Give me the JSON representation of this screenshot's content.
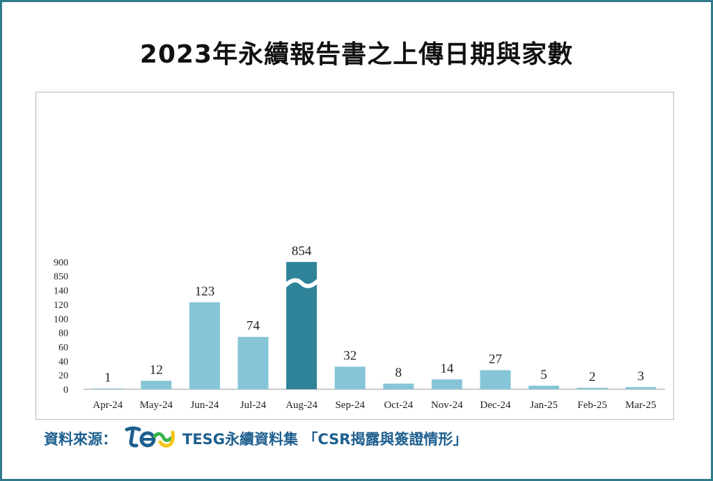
{
  "title": "2023年永續報告書之上傳日期與家數",
  "footer": {
    "source_label": "資料來源：",
    "logo_icon": "tesg-logo-icon",
    "source_text": "TESG永續資料集 「CSR揭露與簽證情形」"
  },
  "colors": {
    "frame": "#2f7a8c",
    "bar": "#86c5d8",
    "bar_highlight": "#2f8399",
    "footer_text": "#1e5f8f"
  },
  "chart_data": {
    "type": "bar",
    "title": "",
    "xlabel": "",
    "ylabel": "",
    "categories": [
      "Apr-24",
      "May-24",
      "Jun-24",
      "Jul-24",
      "Aug-24",
      "Sep-24",
      "Oct-24",
      "Nov-24",
      "Dec-24",
      "Jan-25",
      "Feb-25",
      "Mar-25"
    ],
    "values": [
      1,
      12,
      123,
      74,
      854,
      32,
      8,
      14,
      27,
      5,
      2,
      3
    ],
    "data_labels": [
      "1",
      "12",
      "123",
      "74",
      "854",
      "32",
      "8",
      "14",
      "27",
      "5",
      "2",
      "3"
    ],
    "y_ticks": [
      "0",
      "20",
      "40",
      "60",
      "80",
      "100",
      "120",
      "140",
      "850",
      "900"
    ],
    "ylim": [
      0,
      900
    ],
    "axis_break": "between 140 and 850",
    "highlight_category": "Aug-24",
    "grid": false,
    "legend": "none"
  }
}
